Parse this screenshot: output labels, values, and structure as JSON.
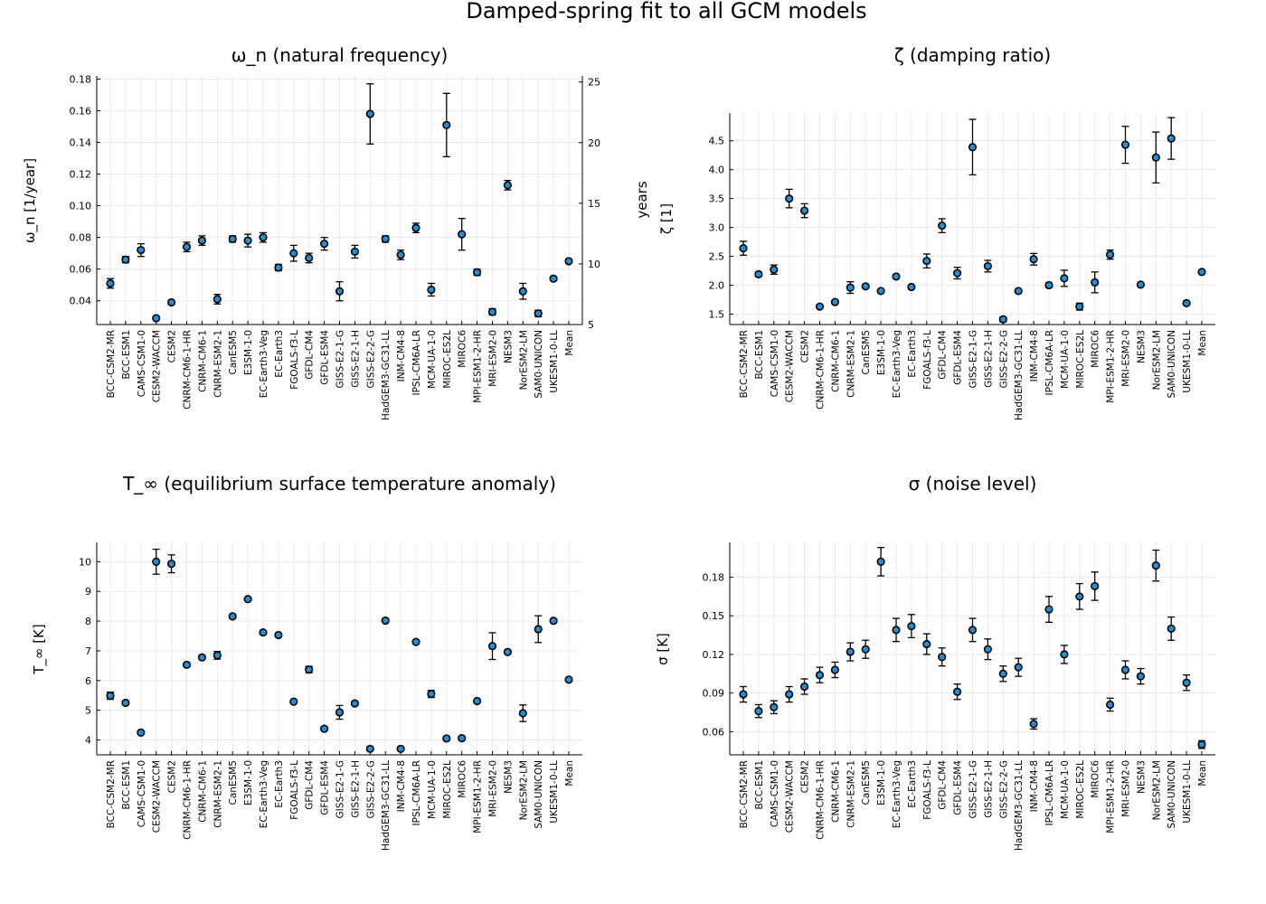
{
  "figure": {
    "title": "Damped-spring fit to all GCM models"
  },
  "chart_data": [
    {
      "type": "scatter",
      "title": "ω_n (natural frequency)",
      "ylabel": "ω_n [1/year]",
      "ylim": [
        0.025,
        0.182
      ],
      "yticks": [
        0.04,
        0.06,
        0.08,
        0.1,
        0.12,
        0.14,
        0.16,
        0.18
      ],
      "yticklabels": [
        "0.04",
        "0.06",
        "0.08",
        "0.10",
        "0.12",
        "0.14",
        "0.16",
        "0.18"
      ],
      "secondary_axis": {
        "label": "years",
        "ticks": [
          5,
          10,
          15,
          20,
          25
        ],
        "ticklabels": [
          "5",
          "10",
          "15",
          "20",
          "25"
        ],
        "ylim": [
          5,
          25.5
        ]
      },
      "error_bars": true,
      "grid": true,
      "categories": [
        "BCC-CSM2-MR",
        "BCC-ESM1",
        "CAMS-CSM1-0",
        "CESM2-WACCM",
        "CESM2",
        "CNRM-CM6-1-HR",
        "CNRM-CM6-1",
        "CNRM-ESM2-1",
        "CanESM5",
        "E3SM-1-0",
        "EC-Earth3-Veg",
        "EC-Earth3",
        "FGOALS-f3-L",
        "GFDL-CM4",
        "GFDL-ESM4",
        "GISS-E2-1-G",
        "GISS-E2-1-H",
        "GISS-E2-2-G",
        "HadGEM3-GC31-LL",
        "INM-CM4-8",
        "IPSL-CM6A-LR",
        "MCM-UA-1-0",
        "MIROC-ES2L",
        "MIROC6",
        "MPI-ESM1-2-HR",
        "MRI-ESM2-0",
        "NESM3",
        "NorESM2-LM",
        "SAM0-UNICON",
        "UKESM1-0-LL",
        "Mean"
      ],
      "values": [
        0.051,
        0.066,
        0.072,
        0.029,
        0.039,
        0.074,
        0.078,
        0.041,
        0.079,
        0.078,
        0.08,
        0.061,
        0.07,
        0.067,
        0.076,
        0.046,
        0.071,
        0.158,
        0.079,
        0.069,
        0.086,
        0.047,
        0.151,
        0.082,
        0.058,
        0.033,
        0.113,
        0.046,
        0.032,
        0.054,
        0.065
      ],
      "errors": [
        0.003,
        0.002,
        0.004,
        0.001,
        0.001,
        0.003,
        0.003,
        0.003,
        0.002,
        0.004,
        0.003,
        0.002,
        0.005,
        0.003,
        0.004,
        0.006,
        0.004,
        0.019,
        0.002,
        0.003,
        0.003,
        0.004,
        0.02,
        0.01,
        0.002,
        0.002,
        0.003,
        0.005,
        0.002,
        0.001,
        0.001
      ]
    },
    {
      "type": "scatter",
      "title": "ζ (damping ratio)",
      "ylabel": "ζ [1]",
      "ylim": [
        1.32,
        4.98
      ],
      "yticks": [
        1.5,
        2.0,
        2.5,
        3.0,
        3.5,
        4.0,
        4.5
      ],
      "yticklabels": [
        "1.5",
        "2.0",
        "2.5",
        "3.0",
        "3.5",
        "4.0",
        "4.5"
      ],
      "error_bars": true,
      "grid": true,
      "categories": [
        "BCC-CSM2-MR",
        "BCC-ESM1",
        "CAMS-CSM1-0",
        "CESM2-WACCM",
        "CESM2",
        "CNRM-CM6-1-HR",
        "CNRM-CM6-1",
        "CNRM-ESM2-1",
        "CanESM5",
        "E3SM-1-0",
        "EC-Earth3-Veg",
        "EC-Earth3",
        "FGOALS-f3-L",
        "GFDL-CM4",
        "GFDL-ESM4",
        "GISS-E2-1-G",
        "GISS-E2-1-H",
        "GISS-E2-2-G",
        "HadGEM3-GC31-LL",
        "INM-CM4-8",
        "IPSL-CM6A-LR",
        "MCM-UA-1-0",
        "MIROC-ES2L",
        "MIROC6",
        "MPI-ESM1-2-HR",
        "MRI-ESM2-0",
        "NESM3",
        "NorESM2-LM",
        "SAM0-UNICON",
        "UKESM1-0-LL",
        "Mean"
      ],
      "values": [
        2.64,
        2.19,
        2.27,
        3.5,
        3.29,
        1.63,
        1.71,
        1.96,
        1.98,
        1.9,
        2.15,
        1.97,
        2.42,
        3.03,
        2.21,
        4.39,
        2.33,
        1.41,
        1.9,
        2.45,
        2.0,
        2.12,
        1.63,
        2.05,
        2.53,
        4.43,
        2.01,
        4.21,
        4.54,
        1.69,
        2.23
      ],
      "errors": [
        0.12,
        0.04,
        0.08,
        0.16,
        0.12,
        0.02,
        0.02,
        0.1,
        0.02,
        0.02,
        0.02,
        0.02,
        0.12,
        0.12,
        0.1,
        0.48,
        0.1,
        0.04,
        0.02,
        0.1,
        0.04,
        0.14,
        0.06,
        0.18,
        0.08,
        0.32,
        0.02,
        0.44,
        0.36,
        0.02,
        0.01
      ]
    },
    {
      "type": "scatter",
      "title": "T_∞ (equilibrium surface temperature anomaly)",
      "ylabel": "T_∞ [K]",
      "ylim": [
        3.5,
        10.65
      ],
      "yticks": [
        4,
        5,
        6,
        7,
        8,
        9,
        10
      ],
      "yticklabels": [
        "4",
        "5",
        "6",
        "7",
        "8",
        "9",
        "10"
      ],
      "error_bars": true,
      "grid": true,
      "categories": [
        "BCC-CSM2-MR",
        "BCC-ESM1",
        "CAMS-CSM1-0",
        "CESM2-WACCM",
        "CESM2",
        "CNRM-CM6-1-HR",
        "CNRM-CM6-1",
        "CNRM-ESM2-1",
        "CanESM5",
        "E3SM-1-0",
        "EC-Earth3-Veg",
        "EC-Earth3",
        "FGOALS-f3-L",
        "GFDL-CM4",
        "GFDL-ESM4",
        "GISS-E2-1-G",
        "GISS-E2-1-H",
        "GISS-E2-2-G",
        "HadGEM3-GC31-LL",
        "INM-CM4-8",
        "IPSL-CM6A-LR",
        "MCM-UA-1-0",
        "MIROC-ES2L",
        "MIROC6",
        "MPI-ESM1-2-HR",
        "MRI-ESM2-0",
        "NESM3",
        "NorESM2-LM",
        "SAM0-UNICON",
        "UKESM1-0-LL",
        "Mean"
      ],
      "values": [
        5.49,
        5.25,
        4.25,
        10.0,
        9.93,
        6.53,
        6.78,
        6.85,
        8.16,
        8.74,
        7.62,
        7.53,
        5.29,
        6.37,
        4.38,
        4.93,
        5.23,
        3.7,
        8.02,
        3.7,
        7.3,
        5.55,
        4.05,
        4.06,
        5.31,
        7.16,
        6.96,
        4.9,
        7.73,
        8.01,
        6.03
      ],
      "errors": [
        0.12,
        0.05,
        0.05,
        0.42,
        0.3,
        0.05,
        0.05,
        0.13,
        0.05,
        0.05,
        0.05,
        0.05,
        0.05,
        0.11,
        0.05,
        0.23,
        0.05,
        0.05,
        0.05,
        0.05,
        0.05,
        0.12,
        0.05,
        0.05,
        0.05,
        0.45,
        0.05,
        0.28,
        0.45,
        0.05,
        0.02
      ]
    },
    {
      "type": "scatter",
      "title": "σ (noise level)",
      "ylabel": "σ [K]",
      "ylim": [
        0.042,
        0.207
      ],
      "yticks": [
        0.06,
        0.09,
        0.12,
        0.15,
        0.18
      ],
      "yticklabels": [
        "0.06",
        "0.09",
        "0.12",
        "0.15",
        "0.18"
      ],
      "error_bars": true,
      "grid": true,
      "categories": [
        "BCC-CSM2-MR",
        "BCC-ESM1",
        "CAMS-CSM1-0",
        "CESM2-WACCM",
        "CESM2",
        "CNRM-CM6-1-HR",
        "CNRM-CM6-1",
        "CNRM-ESM2-1",
        "CanESM5",
        "E3SM-1-0",
        "EC-Earth3-Veg",
        "EC-Earth3",
        "FGOALS-f3-L",
        "GFDL-CM4",
        "GFDL-ESM4",
        "GISS-E2-1-G",
        "GISS-E2-1-H",
        "GISS-E2-2-G",
        "HadGEM3-GC31-LL",
        "INM-CM4-8",
        "IPSL-CM6A-LR",
        "MCM-UA-1-0",
        "MIROC-ES2L",
        "MIROC6",
        "MPI-ESM1-2-HR",
        "MRI-ESM2-0",
        "NESM3",
        "NorESM2-LM",
        "SAM0-UNICON",
        "UKESM1-0-LL",
        "Mean"
      ],
      "values": [
        0.089,
        0.076,
        0.079,
        0.089,
        0.095,
        0.104,
        0.108,
        0.122,
        0.124,
        0.192,
        0.139,
        0.142,
        0.128,
        0.118,
        0.091,
        0.139,
        0.124,
        0.105,
        0.11,
        0.066,
        0.155,
        0.12,
        0.165,
        0.173,
        0.081,
        0.108,
        0.103,
        0.189,
        0.14,
        0.098,
        0.05
      ],
      "errors": [
        0.006,
        0.005,
        0.005,
        0.006,
        0.006,
        0.006,
        0.006,
        0.007,
        0.007,
        0.011,
        0.009,
        0.009,
        0.008,
        0.007,
        0.006,
        0.009,
        0.008,
        0.006,
        0.007,
        0.004,
        0.01,
        0.007,
        0.01,
        0.011,
        0.005,
        0.007,
        0.006,
        0.012,
        0.009,
        0.006,
        0.003
      ]
    }
  ],
  "colors": {
    "marker_fill": "#1f8fd8",
    "marker_edge": "#000000",
    "errorbar": "#000000",
    "grid": "#e6e6e6"
  }
}
